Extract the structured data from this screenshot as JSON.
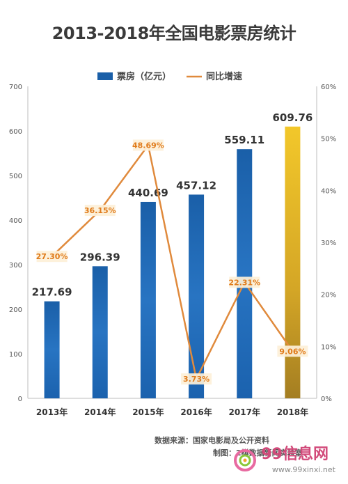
{
  "chart_data": {
    "type": "bar",
    "title": "2013-2018年全国电影票房统计",
    "categories": [
      "2013年",
      "2014年",
      "2015年",
      "2016年",
      "2017年",
      "2018年"
    ],
    "series": [
      {
        "name": "票房（亿元）",
        "type": "bar",
        "axis": "left",
        "values": [
          217.69,
          296.39,
          440.69,
          457.12,
          559.11,
          609.76
        ],
        "labels": [
          "217.69",
          "296.39",
          "440.69",
          "457.12",
          "559.11",
          "609.76"
        ]
      },
      {
        "name": "同比增速",
        "type": "line",
        "axis": "right",
        "values": [
          27.3,
          36.15,
          48.69,
          3.73,
          22.31,
          9.06
        ],
        "labels": [
          "27.30%",
          "36.15%",
          "48.69%",
          "3.73%",
          "22.31%",
          "9.06%"
        ]
      }
    ],
    "y_left": {
      "ticks": [
        "0",
        "100",
        "200",
        "300",
        "400",
        "500",
        "600",
        "700"
      ],
      "lim": [
        0,
        700
      ]
    },
    "y_right": {
      "ticks": [
        "0%",
        "10%",
        "20%",
        "30%",
        "40%",
        "50%",
        "60%"
      ],
      "lim": [
        0,
        60
      ]
    },
    "grid": false,
    "legend_position": "top-center",
    "colors": {
      "bar": "#1a5fa8",
      "bar_light": "#3c8ad6",
      "highlight_bar": "#e9b51a",
      "highlight_bar_dark": "#a8801e",
      "line": "#e08a3c",
      "growth_label_bg": "#fdf0d8",
      "growth_label_text": "#e07b1a"
    }
  },
  "footer": {
    "source": "数据来源：国家电影局及公开资料",
    "maker": "制图：2棋数据新闻实验室"
  },
  "watermark": {
    "brand": "99信息网",
    "url": "www.99xinxi.net",
    "icon": "swirl-logo-icon"
  }
}
